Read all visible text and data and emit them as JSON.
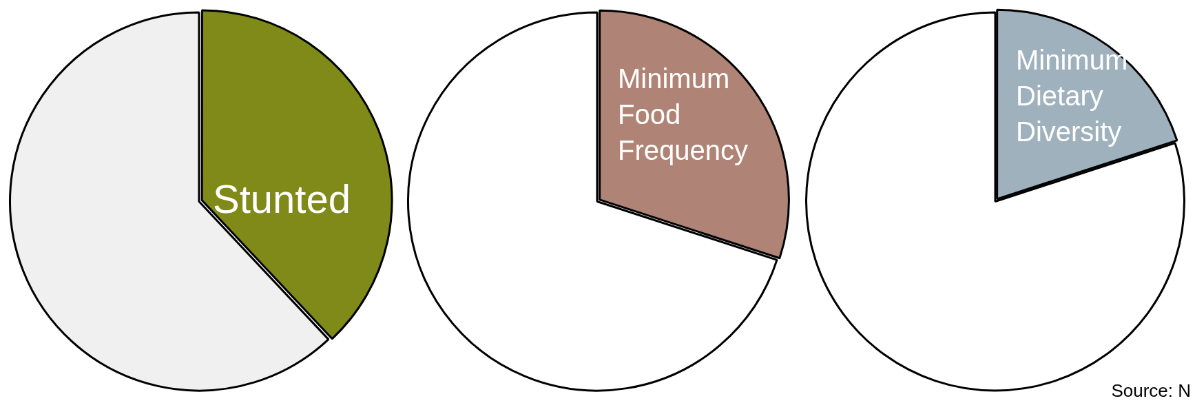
{
  "chart_data": [
    {
      "type": "pie",
      "categories": [
        "Stunted",
        null
      ],
      "values": [
        38,
        62
      ],
      "colors": [
        "#808a18",
        "#f0f0f0"
      ],
      "legend": false
    },
    {
      "type": "pie",
      "categories": [
        "Minimum Food Frequency",
        null
      ],
      "values": [
        30,
        70
      ],
      "colors": [
        "#af8476",
        "#ffffff"
      ],
      "legend": false
    },
    {
      "type": "pie",
      "categories": [
        "Minimum Dietary Diversity",
        null
      ],
      "values": [
        20,
        80
      ],
      "colors": [
        "#9fb1bc",
        "#ffffff"
      ],
      "legend": false,
      "annotations": [
        "Source: N"
      ]
    }
  ]
}
